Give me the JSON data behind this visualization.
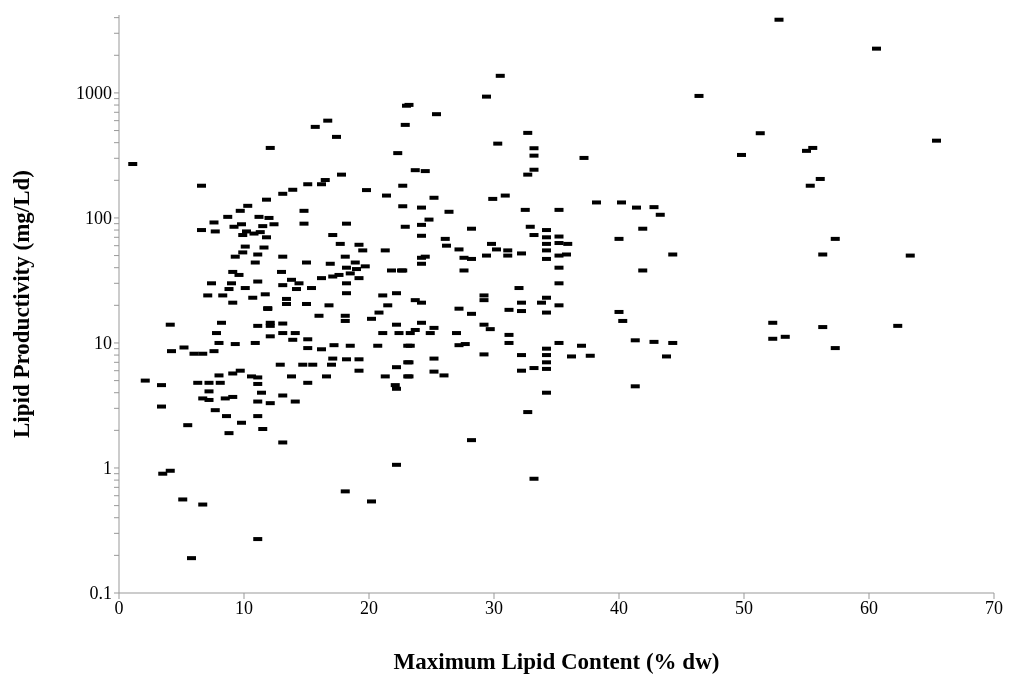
{
  "chart_data": {
    "type": "scatter",
    "xlabel": "Maximum Lipid Content (% dw)",
    "ylabel": "Lipid Productivity (mg/Ld)",
    "log": "y",
    "grid": false,
    "legend": false,
    "marker": "square",
    "xlim": [
      0,
      70
    ],
    "xticks": [
      0,
      10,
      20,
      30,
      40,
      50,
      60,
      70
    ],
    "ylim": [
      0.1,
      4200
    ],
    "yticks": [
      0.1,
      {
        "value": 0.2,
        "label": null
      },
      {
        "value": 0.3,
        "label": null
      },
      {
        "value": 0.4,
        "label": null
      },
      {
        "value": 0.5,
        "label": null
      },
      {
        "value": 0.6,
        "label": null
      },
      {
        "value": 0.7,
        "label": null
      },
      {
        "value": 0.8,
        "label": null
      },
      {
        "value": 0.9,
        "label": null
      },
      1,
      {
        "value": 2,
        "label": null
      },
      {
        "value": 3,
        "label": null
      },
      {
        "value": 4,
        "label": null
      },
      {
        "value": 5,
        "label": null
      },
      {
        "value": 6,
        "label": null
      },
      {
        "value": 7,
        "label": null
      },
      {
        "value": 8,
        "label": null
      },
      {
        "value": 9,
        "label": null
      },
      10,
      {
        "value": 20,
        "label": null
      },
      {
        "value": 30,
        "label": null
      },
      {
        "value": 40,
        "label": null
      },
      {
        "value": 50,
        "label": null
      },
      {
        "value": 60,
        "label": null
      },
      {
        "value": 70,
        "label": null
      },
      {
        "value": 80,
        "label": null
      },
      {
        "value": 90,
        "label": null
      },
      100,
      {
        "value": 200,
        "label": null
      },
      {
        "value": 300,
        "label": null
      },
      {
        "value": 400,
        "label": null
      },
      {
        "value": 500,
        "label": null
      },
      {
        "value": 600,
        "label": null
      },
      {
        "value": 700,
        "label": null
      },
      {
        "value": 800,
        "label": null
      },
      {
        "value": 900,
        "label": null
      },
      1000,
      {
        "value": 2000,
        "label": null
      },
      {
        "value": 3000,
        "label": null
      },
      {
        "value": 4000,
        "label": null
      }
    ],
    "series": [
      {
        "color": "#000000",
        "x": [
          52.8,
          60.6,
          46.4,
          51.3,
          49.8,
          55.5,
          55.0,
          65.4,
          56.1,
          55.3,
          57.3,
          56.3,
          63.3,
          52.3,
          56.3,
          62.3,
          52.3,
          53.3,
          57.3,
          30.5,
          29.4,
          23.2,
          25.4,
          22.9,
          32.7,
          30.3,
          33.2,
          33.2,
          37.2,
          23.7,
          24.5,
          33.2,
          32.7,
          22.7,
          25.2,
          29.9,
          30.9,
          38.2,
          40.2,
          41.4,
          42.8,
          43.3,
          22.7,
          24.2,
          26.4,
          32.5,
          35.2,
          32.9,
          28.2,
          24.8,
          24.2,
          22.9,
          33.2,
          34.2,
          34.2,
          34.2,
          34.2,
          35.2,
          35.2,
          35.9,
          24.2,
          26.1,
          26.2,
          27.2,
          29.8,
          30.2,
          31.1,
          31.1,
          29.4,
          32.2,
          34.2,
          35.2,
          35.8,
          40.0,
          41.9,
          44.3,
          24.2,
          24.2,
          24.5,
          27.6,
          28.2,
          27.6,
          22.7,
          35.2,
          41.9,
          32.0,
          35.2,
          29.2,
          29.2,
          32.2,
          34.2,
          33.8,
          35.2,
          23.7,
          24.2,
          1.1,
          12.1,
          15.7,
          16.7,
          17.4,
          23.0,
          22.3,
          6.6,
          17.8,
          15.1,
          16.2,
          16.5,
          13.9,
          13.1,
          19.8,
          21.4,
          11.8,
          10.3,
          9.7,
          8.7,
          7.6,
          6.6,
          7.7,
          14.8,
          14.8,
          18.2,
          11.2,
          12.0,
          11.5,
          12.4,
          9.2,
          9.8,
          10.2,
          9.9,
          10.8,
          11.3,
          11.8,
          10.1,
          11.6,
          17.1,
          17.7,
          19.2,
          19.5,
          21.3,
          9.3,
          9.9,
          11.1,
          10.9,
          13.1,
          15.0,
          16.9,
          18.1,
          18.9,
          19.7,
          18.2,
          19.0,
          18.5,
          9.1,
          9.6,
          13.0,
          13.8,
          16.2,
          17.1,
          17.6,
          19.2,
          21.8,
          22.6,
          7.4,
          9.0,
          8.8,
          11.1,
          10.1,
          13.1,
          14.4,
          14.2,
          15.4,
          18.2,
          18.2,
          7.1,
          8.3,
          11.7,
          10.7,
          21.1,
          22.2,
          9.1,
          13.4,
          13.4,
          15.0,
          16.8,
          21.5,
          11.9,
          4.1,
          8.2,
          7.8,
          11.9,
          12.1,
          12.1,
          11.1,
          13.1,
          13.1,
          12.1,
          8.0,
          9.3,
          10.9,
          14.1,
          13.9,
          15.1,
          16.0,
          18.1,
          18.1,
          20.2,
          20.8,
          22.2,
          21.1,
          22.4,
          20.7,
          23.1,
          4.2,
          5.2,
          6.0,
          6.7,
          7.6,
          15.1,
          16.2,
          17.2,
          18.5,
          17.1,
          18.2,
          19.2,
          19.2,
          22.2,
          23.1,
          12.9,
          14.7,
          15.5,
          17.0,
          2.1,
          3.4,
          3.4,
          5.5,
          6.3,
          7.2,
          8.1,
          7.2,
          6.7,
          7.2,
          8.5,
          9.1,
          8.0,
          9.1,
          9.7,
          7.7,
          8.6,
          8.8,
          9.8,
          10.6,
          11.1,
          11.1,
          11.4,
          11.1,
          12.1,
          11.1,
          11.5,
          13.1,
          13.1,
          14.1,
          13.8,
          15.1,
          16.6,
          21.3,
          23.1,
          22.1,
          22.2,
          22.2,
          3.5,
          4.1,
          5.1,
          6.7,
          18.1,
          20.2,
          11.1,
          5.8,
          27.2,
          28.2,
          31.2,
          32.2,
          34.2,
          40.0,
          40.3,
          24.2,
          25.2,
          23.7,
          23.3,
          24.9,
          27.0,
          29.2,
          29.7,
          31.2,
          31.2,
          23.3,
          27.2,
          27.7,
          29.2,
          32.2,
          34.2,
          34.2,
          34.2,
          35.2,
          37.0,
          36.2,
          37.7,
          41.3,
          42.8,
          44.3,
          43.8,
          41.3,
          23.2,
          25.2,
          25.2,
          26.0,
          23.2,
          32.2,
          33.2,
          34.2,
          34.2,
          32.7,
          28.2,
          33.2
        ],
        "values": [
          3850,
          2260,
          946,
          476,
          319,
          363,
          344,
          415,
          205,
          181,
          68,
          51,
          50,
          14.5,
          13.4,
          13.7,
          10.8,
          11.2,
          9.1,
          1370,
          934,
          802,
          676,
          555,
          479,
          393,
          361,
          315,
          302,
          241,
          237,
          243,
          222,
          181,
          145,
          142,
          151,
          133,
          133,
          121,
          122,
          106,
          124,
          121,
          112,
          116,
          116,
          85,
          82,
          97,
          88,
          85,
          73,
          80,
          70,
          62,
          55,
          71,
          63,
          62,
          72,
          68,
          60,
          56,
          62,
          56,
          55,
          50,
          50,
          52,
          47,
          50,
          51,
          68,
          82,
          51,
          48,
          43,
          49,
          48,
          47,
          38,
          38,
          40,
          38,
          27.5,
          30,
          24,
          22,
          21,
          23,
          21,
          20,
          22,
          21,
          270,
          363,
          535,
          600,
          445,
          790,
          330,
          181,
          222,
          186,
          186,
          201,
          168,
          156,
          167,
          151,
          140,
          125,
          114,
          102,
          92,
          80,
          78,
          114,
          90,
          90,
          102,
          100,
          86,
          89,
          85,
          89,
          78,
          73,
          75,
          77,
          70,
          59,
          58,
          73,
          62,
          61,
          55,
          55,
          49,
          53,
          51,
          44,
          49,
          44,
          43,
          49,
          44,
          41,
          40,
          39,
          36,
          37,
          35,
          37,
          32,
          33,
          34,
          35,
          33,
          38,
          38,
          30,
          30,
          27,
          31,
          27.5,
          29,
          30,
          27,
          27.5,
          30,
          25,
          24,
          24,
          24.5,
          23,
          24,
          25,
          21,
          22.5,
          20.5,
          20.5,
          20,
          20,
          19,
          14,
          14.5,
          12,
          18.7,
          14.5,
          13.7,
          13.7,
          14.3,
          12,
          11.3,
          10,
          9.8,
          10,
          12,
          10.6,
          10.7,
          16.5,
          16.5,
          15,
          15.6,
          17.5,
          14,
          12,
          12,
          9.5,
          9.5,
          8.6,
          9.2,
          8.2,
          8.2,
          8.6,
          9.1,
          8.9,
          9.6,
          9.5,
          7.5,
          7.4,
          7.4,
          6,
          6.4,
          7,
          6.7,
          6.7,
          6.7,
          6.7,
          5,
          4.6,
          3.1,
          2.2,
          4.8,
          4.8,
          4.8,
          4.1,
          3.6,
          3.5,
          3.6,
          3.7,
          5.5,
          5.7,
          6,
          2.9,
          2.6,
          1.9,
          2.3,
          5.4,
          5.3,
          4.7,
          4,
          3.4,
          3.3,
          2.6,
          2.05,
          3.8,
          1.6,
          3.4,
          5.4,
          4.8,
          5.4,
          5.4,
          5.4,
          4.6,
          4.3,
          1.06,
          0.9,
          0.95,
          0.56,
          0.51,
          0.65,
          0.54,
          0.27,
          0.19,
          18.8,
          17.1,
          18.4,
          18,
          17.5,
          17.7,
          15,
          14.5,
          13.2,
          12.7,
          12,
          12,
          12,
          14,
          12.9,
          11.6,
          10,
          9.5,
          9.6,
          9.8,
          8.1,
          8,
          9,
          8,
          7,
          10,
          9.5,
          7.8,
          7.9,
          10.5,
          10.2,
          10,
          7.8,
          4.5,
          7,
          7.5,
          5.9,
          5.5,
          5.4,
          6,
          6.3,
          6.2,
          4,
          2.8,
          1.67,
          0.82
        ]
      }
    ]
  }
}
